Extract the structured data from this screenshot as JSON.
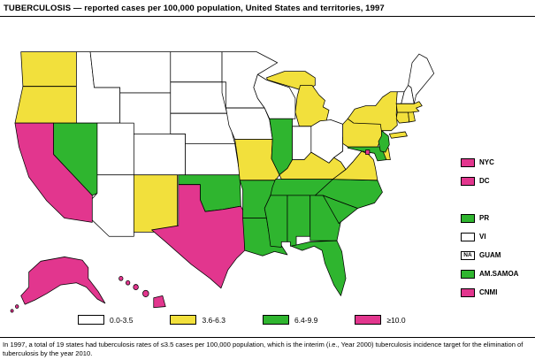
{
  "title": "TUBERCULOSIS — reported cases per 100,000 population, United States and territories, 1997",
  "footnote": "In 1997, a total of 19 states had tuberculosis rates of ≤3.5 cases per 100,000 population, which is the interim (i.e., Year 2000) tuberculosis incidence target for the elimination of tuberculosis by the year 2010.",
  "colors": {
    "white": "#FFFFFF",
    "yellow": "#F2E03C",
    "green": "#2FB52F",
    "magenta": "#E2368E",
    "outline": "#000000"
  },
  "legend": {
    "items": [
      {
        "label": "0.0-3.5",
        "category": "white"
      },
      {
        "label": "3.6-6.3",
        "category": "yellow"
      },
      {
        "label": "6.4-9.9",
        "category": "green"
      },
      {
        "label": "≥10.0",
        "category": "magenta"
      }
    ]
  },
  "territories": [
    {
      "label": "NYC",
      "category": "magenta"
    },
    {
      "label": "DC",
      "category": "magenta",
      "gap_after": true
    },
    {
      "label": "PR",
      "category": "green"
    },
    {
      "label": "VI",
      "category": "white"
    },
    {
      "label": "GUAM",
      "category": "na",
      "box_text": "NA"
    },
    {
      "label": "AM.SAMOA",
      "category": "green"
    },
    {
      "label": "CNMI",
      "category": "magenta"
    }
  ],
  "map": {
    "states": {
      "WA": "yellow",
      "OR": "yellow",
      "CA": "magenta",
      "NV": "green",
      "ID": "white",
      "MT": "white",
      "WY": "white",
      "UT": "white",
      "CO": "white",
      "AZ": "white",
      "NM": "yellow",
      "ND": "white",
      "SD": "white",
      "NE": "white",
      "KS": "white",
      "OK": "green",
      "TX": "magenta",
      "MN": "white",
      "IA": "white",
      "MO": "yellow",
      "AR": "green",
      "LA": "green",
      "WI": "white",
      "MI": "yellow",
      "IL": "green",
      "IN": "white",
      "OH": "white",
      "KY": "yellow",
      "TN": "green",
      "MS": "green",
      "AL": "green",
      "GA": "green",
      "FL": "green",
      "SC": "green",
      "NC": "green",
      "VA": "yellow",
      "WV": "white",
      "MD": "green",
      "DE": "yellow",
      "DC": "magenta",
      "PA": "yellow",
      "NJ": "green",
      "NY": "yellow",
      "CT": "yellow",
      "RI": "yellow",
      "MA": "yellow",
      "VT": "white",
      "NH": "white",
      "ME": "white",
      "AK": "magenta",
      "HI": "magenta"
    }
  },
  "chart_data": {
    "type": "choropleth",
    "title": "TUBERCULOSIS — reported cases per 100,000 population, United States and territories, 1997",
    "unit": "reported cases per 100,000 population",
    "year": "1997",
    "bins": [
      "0.0-3.5",
      "3.6-6.3",
      "6.4-9.9",
      "≥10.0"
    ],
    "bin_colors": {
      "0.0-3.5": "#FFFFFF",
      "3.6-6.3": "#F2E03C",
      "6.4-9.9": "#2FB52F",
      "≥10.0": "#E2368E"
    },
    "regions": {
      "WA": "3.6-6.3",
      "OR": "3.6-6.3",
      "CA": "≥10.0",
      "NV": "6.4-9.9",
      "ID": "0.0-3.5",
      "MT": "0.0-3.5",
      "WY": "0.0-3.5",
      "UT": "0.0-3.5",
      "CO": "0.0-3.5",
      "AZ": "0.0-3.5",
      "NM": "3.6-6.3",
      "ND": "0.0-3.5",
      "SD": "0.0-3.5",
      "NE": "0.0-3.5",
      "KS": "0.0-3.5",
      "OK": "6.4-9.9",
      "TX": "≥10.0",
      "MN": "0.0-3.5",
      "IA": "0.0-3.5",
      "MO": "3.6-6.3",
      "AR": "6.4-9.9",
      "LA": "6.4-9.9",
      "WI": "0.0-3.5",
      "MI": "3.6-6.3",
      "IL": "6.4-9.9",
      "IN": "0.0-3.5",
      "OH": "0.0-3.5",
      "KY": "3.6-6.3",
      "TN": "6.4-9.9",
      "MS": "6.4-9.9",
      "AL": "6.4-9.9",
      "GA": "6.4-9.9",
      "FL": "6.4-9.9",
      "SC": "6.4-9.9",
      "NC": "6.4-9.9",
      "VA": "3.6-6.3",
      "WV": "0.0-3.5",
      "MD": "6.4-9.9",
      "DE": "3.6-6.3",
      "PA": "3.6-6.3",
      "NJ": "6.4-9.9",
      "NY": "3.6-6.3",
      "CT": "3.6-6.3",
      "RI": "3.6-6.3",
      "MA": "3.6-6.3",
      "VT": "0.0-3.5",
      "NH": "0.0-3.5",
      "ME": "0.0-3.5",
      "AK": "≥10.0",
      "HI": "≥10.0",
      "DC": "≥10.0",
      "NYC": "≥10.0",
      "PR": "6.4-9.9",
      "VI": "0.0-3.5",
      "GUAM": "NA",
      "AM.SAMOA": "6.4-9.9",
      "CNMI": "≥10.0"
    }
  }
}
